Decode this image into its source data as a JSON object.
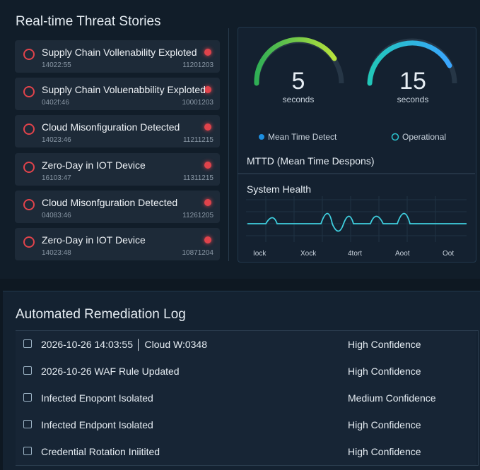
{
  "threat_stories": {
    "title": "Real-time Threat Stories",
    "items": [
      {
        "title": "Supply Chain Vollenability Exploted",
        "time": "14022:55",
        "id": "11201203"
      },
      {
        "title": "Supply Chain Voluenabbility Exploted",
        "time": "0402f:46",
        "id": "10001203"
      },
      {
        "title": "Cloud Misonfiguration Detected",
        "time": "14023:46",
        "id": "11211215"
      },
      {
        "title": "Zero-Day in IOT Device",
        "time": "16103:47",
        "id": "11311215"
      },
      {
        "title": "Cloud Misonfguration Detected",
        "time": "04083:46",
        "id": "11261205"
      },
      {
        "title": "Zero-Day in IOT Device",
        "time": "14023:48",
        "id": "10871204"
      }
    ]
  },
  "metrics": {
    "gauges": [
      {
        "value": 5,
        "unit": "seconds"
      },
      {
        "value": 15,
        "unit": "seconds"
      }
    ],
    "legend": [
      "Mean Time Detect",
      "Operational"
    ],
    "caption": "MTTD (Mean Time Despons)"
  },
  "system_health": {
    "title": "System Health",
    "x_labels": [
      "Iock",
      "Xock",
      "4tort",
      "Aoot",
      "Oot"
    ]
  },
  "remediation_log": {
    "title": "Automated Remediation Log",
    "rows": [
      {
        "text": "2026-10-26 14:03:55 │ Cloud W:0348",
        "confidence": "High Confidence"
      },
      {
        "text": "2026-10-26 WAF Rule Updated",
        "confidence": "High Confidence"
      },
      {
        "text": "Infected Enopont Isolated",
        "confidence": "Medium Confidence"
      },
      {
        "text": "Infected Endpont Isolated",
        "confidence": "High Confidence"
      },
      {
        "text": "Credential Rotation Iniitited",
        "confidence": "High Confidence"
      }
    ]
  }
}
